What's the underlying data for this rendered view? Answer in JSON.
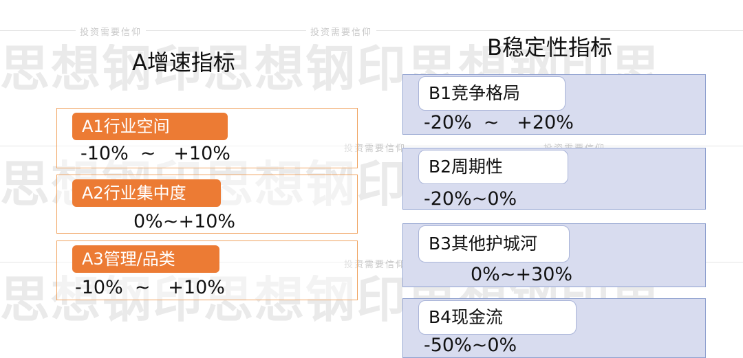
{
  "watermark": {
    "small_text": "投资需要信仰",
    "big_text": "思想钢印思想钢印思想钢印思"
  },
  "section_a": {
    "title": "A增速指标",
    "items": [
      {
        "label": "A1行业空间",
        "range": "-10%  ~   +10%"
      },
      {
        "label": "A2行业集中度",
        "range": "0%~+10%"
      },
      {
        "label": "A3管理/品类",
        "range": "-10%  ~   +10%"
      }
    ]
  },
  "section_b": {
    "title": "B稳定性指标",
    "items": [
      {
        "label": "B1竞争格局",
        "range": "-20%  ~   +20%"
      },
      {
        "label": "B2周期性",
        "range": "-20%~0%"
      },
      {
        "label": "B3其他护城河",
        "range": "0%~+30%"
      },
      {
        "label": "B4现金流",
        "range": "-50%~0%"
      }
    ]
  },
  "colors": {
    "a_label_bg": "#ec7b34",
    "a_border": "#f0a25e",
    "b_box_bg": "#d8dcef",
    "b_border": "#8fa0cf"
  }
}
